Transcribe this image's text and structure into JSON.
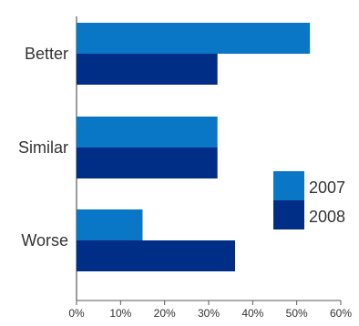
{
  "chart_data": {
    "type": "bar",
    "orientation": "horizontal",
    "title": "",
    "xlabel": "",
    "ylabel": "",
    "categories": [
      "Better",
      "Similar",
      "Worse"
    ],
    "series": [
      {
        "name": "2007",
        "values": [
          53,
          32,
          15
        ],
        "color": "#0a77c6"
      },
      {
        "name": "2008",
        "values": [
          32,
          32,
          36
        ],
        "color": "#002e86"
      }
    ],
    "x_ticks": [
      0,
      10,
      20,
      30,
      40,
      50,
      60
    ],
    "x_tick_labels": [
      "0%",
      "10%",
      "20%",
      "30%",
      "40%",
      "50%",
      "60%"
    ],
    "xlim": [
      0,
      60
    ],
    "grid": false,
    "legend_position": "right"
  }
}
